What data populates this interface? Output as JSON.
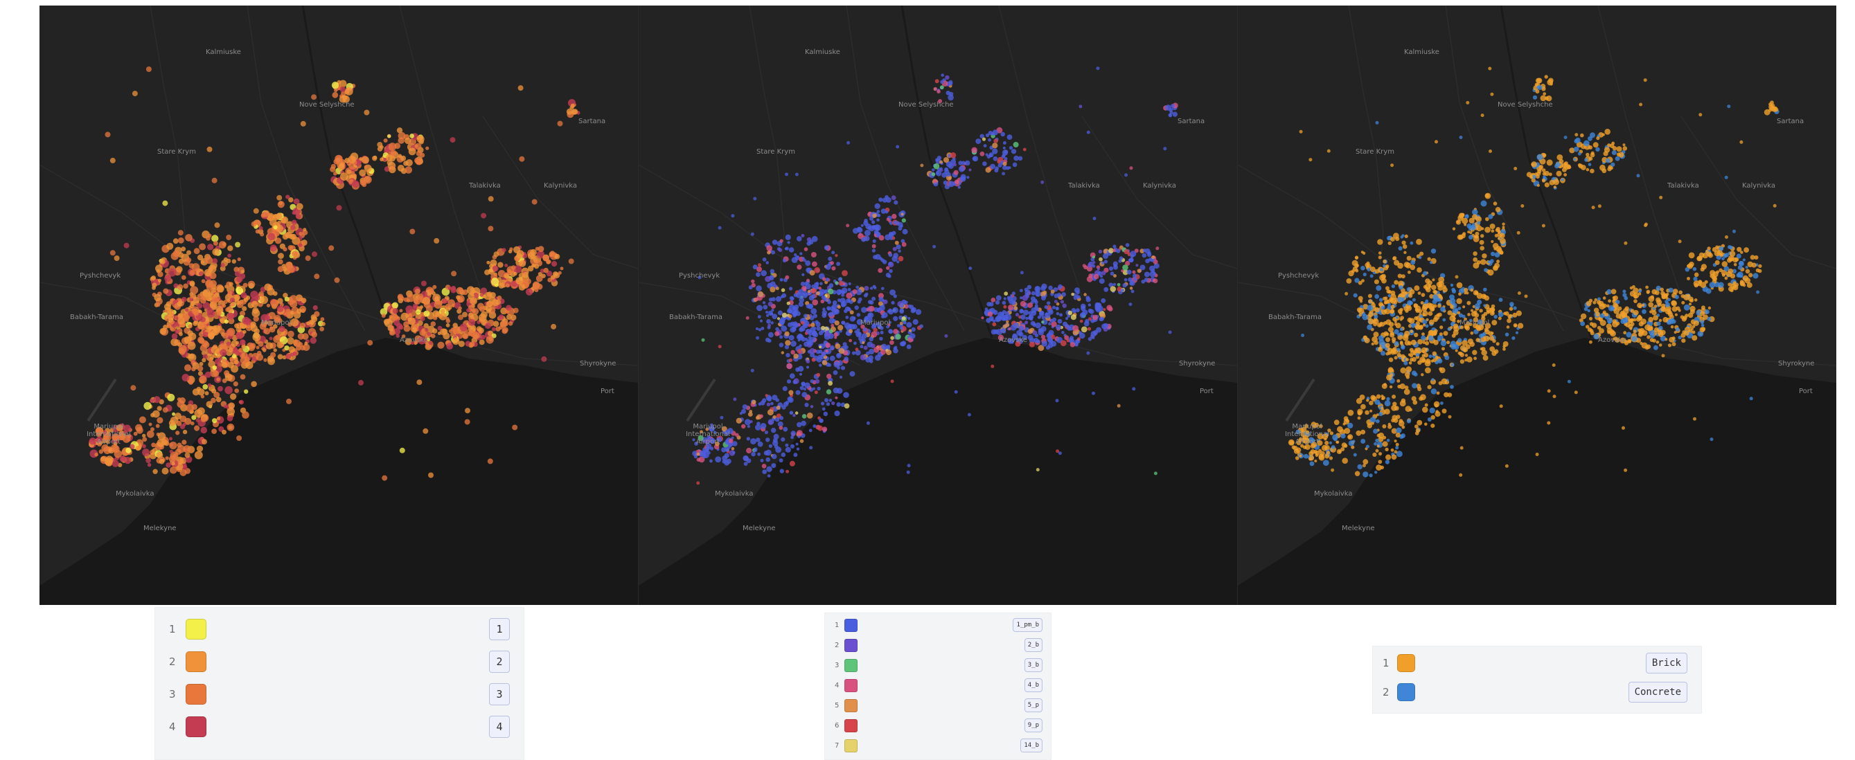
{
  "basemap": {
    "water_color": "#181818",
    "land_color": "#232323",
    "place_labels": [
      {
        "text": "Kalmiuske",
        "key": "kalmiuske"
      },
      {
        "text": "Stare Krym",
        "key": "stare_krym"
      },
      {
        "text": "Nove Selyshche",
        "key": "nove"
      },
      {
        "text": "Sartana",
        "key": "sartana"
      },
      {
        "text": "Talakivka",
        "key": "talakivka"
      },
      {
        "text": "Kalynivka",
        "key": "kalynivka"
      },
      {
        "text": "Pyshchevyk",
        "key": "pyshchevyk"
      },
      {
        "text": "Babakh-Tarama",
        "key": "babakh"
      },
      {
        "text": "Mariupol",
        "key": "mariupol"
      },
      {
        "text": "Azovske",
        "key": "azovske"
      },
      {
        "text": "Shyrokyne",
        "key": "shyrokyne"
      },
      {
        "text": "Port",
        "key": "port"
      },
      {
        "text": "Mariupol International Airport",
        "key": "airport"
      },
      {
        "text": "Mykolaivka",
        "key": "mykolaivka"
      },
      {
        "text": "Melekyne",
        "key": "melekyne"
      }
    ]
  },
  "maps": [
    {
      "name": "map-floors",
      "palette": [
        "#f4f04a",
        "#f0923a",
        "#e8773c",
        "#c43c52"
      ],
      "weights": [
        0.04,
        0.36,
        0.38,
        0.22
      ]
    },
    {
      "name": "map-building-type",
      "palette": [
        "#4c5ee0",
        "#6a4fd0",
        "#5ec47a",
        "#d9527f",
        "#e0904a",
        "#d6434a",
        "#e5d26a"
      ],
      "weights": [
        0.68,
        0.06,
        0.02,
        0.1,
        0.07,
        0.05,
        0.02
      ]
    },
    {
      "name": "map-material",
      "palette": [
        "#f0a02a",
        "#3f86d9"
      ],
      "weights": [
        0.74,
        0.26
      ]
    }
  ],
  "legends": {
    "floors": {
      "items": [
        {
          "index": "1",
          "color": "#f4f04a",
          "label": "1"
        },
        {
          "index": "2",
          "color": "#f0923a",
          "label": "2"
        },
        {
          "index": "3",
          "color": "#e8773c",
          "label": "3"
        },
        {
          "index": "4",
          "color": "#c43c52",
          "label": "4"
        }
      ]
    },
    "building_type": {
      "items": [
        {
          "index": "1",
          "color": "#4c5ee0",
          "label": "1_pm_b"
        },
        {
          "index": "2",
          "color": "#6a4fd0",
          "label": "2_b"
        },
        {
          "index": "3",
          "color": "#5ec47a",
          "label": "3_b"
        },
        {
          "index": "4",
          "color": "#d9527f",
          "label": "4_b"
        },
        {
          "index": "5",
          "color": "#e0904a",
          "label": "5_p"
        },
        {
          "index": "6",
          "color": "#d6434a",
          "label": "9_p"
        },
        {
          "index": "7",
          "color": "#e5d26a",
          "label": "14_b"
        }
      ]
    },
    "material": {
      "items": [
        {
          "index": "1",
          "color": "#f0a02a",
          "label": "Brick"
        },
        {
          "index": "2",
          "color": "#3f86d9",
          "label": "Concrete"
        }
      ]
    }
  }
}
